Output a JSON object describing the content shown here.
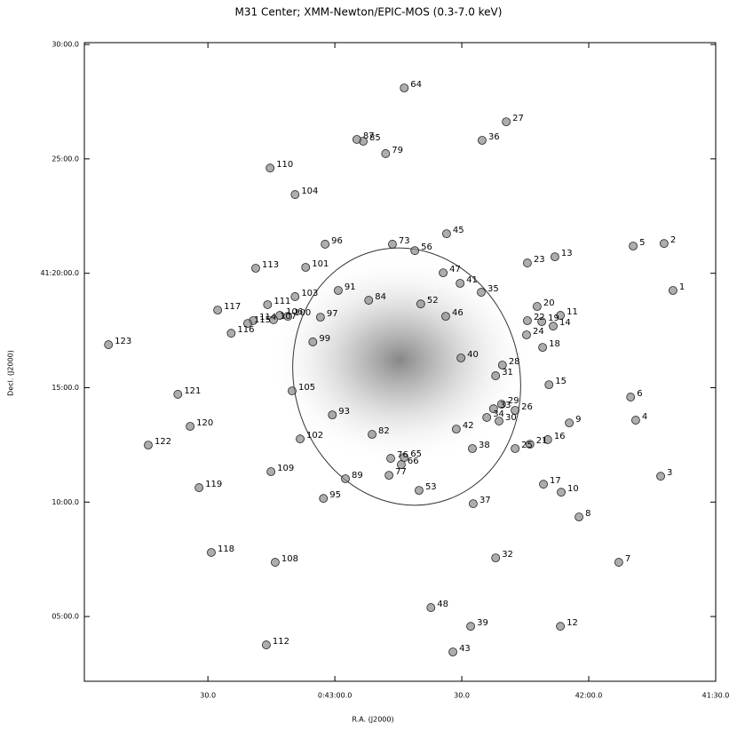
{
  "chart_data": {
    "type": "scatter",
    "title": "M31 Center; XMM-Newton/EPIC-MOS (0.3-7.0 keV)",
    "x_label": "R.A. (J2000)",
    "y_label": "Decl. (J2000)",
    "xlim": [
      2639.2,
      2490
    ],
    "ylim": [
      2.17,
      30.08
    ],
    "xticks": [
      {
        "value": 2610,
        "label": "30.0"
      },
      {
        "value": 2580,
        "label": "0:43:00.0"
      },
      {
        "value": 2550,
        "label": "30.0"
      },
      {
        "value": 2520,
        "label": "42:00.0"
      },
      {
        "value": 2490,
        "label": "41:30.0"
      }
    ],
    "yticks": [
      {
        "value": 5,
        "label": "05:00.0"
      },
      {
        "value": 10,
        "label": "10:00.0"
      },
      {
        "value": 15,
        "label": "15:00.0"
      },
      {
        "value": 20,
        "label": "41:20:00.0"
      },
      {
        "value": 25,
        "label": "25:00.0"
      },
      {
        "value": 30,
        "label": "30:00.0"
      }
    ],
    "series": [
      {
        "color": "#8a8a8a",
        "labels": [
          "1",
          "2",
          "3",
          "4",
          "5",
          "6",
          "7",
          "8",
          "9",
          "10",
          "11",
          "12",
          "13",
          "14",
          "15",
          "16",
          "17",
          "18",
          "19",
          "20",
          "21",
          "22",
          "23",
          "24",
          "25",
          "26",
          "27",
          "28",
          "29",
          "30",
          "31",
          "32",
          "33",
          "34",
          "35",
          "36",
          "37",
          "38",
          "39",
          "40",
          "41",
          "42",
          "43",
          "45",
          "46",
          "47",
          "48",
          "52",
          "53",
          "56",
          "64",
          "65",
          "66",
          "73",
          "76",
          "77",
          "79",
          "82",
          "84",
          "85",
          "87",
          "89",
          "91",
          "93",
          "95",
          "96",
          "97",
          "99",
          "100",
          "101",
          "102",
          "103",
          "104",
          "105",
          "106",
          "107",
          "108",
          "109",
          "110",
          "111",
          "112",
          "113",
          "114",
          "115",
          "116",
          "117",
          "118",
          "119",
          "120",
          "121",
          "122",
          "123"
        ],
        "x": [
          2500.1,
          2502.2,
          2503.0,
          2508.9,
          2509.5,
          2510.1,
          2512.9,
          2522.3,
          2524.6,
          2526.5,
          2526.7,
          2526.7,
          2528.0,
          2528.4,
          2529.4,
          2529.7,
          2530.7,
          2530.9,
          2531.1,
          2532.2,
          2533.9,
          2534.5,
          2534.5,
          2534.7,
          2537.4,
          2537.4,
          2539.5,
          2540.4,
          2540.6,
          2541.2,
          2542.0,
          2542.0,
          2542.5,
          2544.1,
          2545.4,
          2545.2,
          2547.3,
          2547.5,
          2547.9,
          2550.2,
          2550.4,
          2551.3,
          2552.1,
          2553.6,
          2553.8,
          2554.4,
          2557.3,
          2559.7,
          2560.1,
          2561.1,
          2563.6,
          2563.6,
          2564.3,
          2566.4,
          2566.8,
          2567.2,
          2568.0,
          2571.2,
          2572.0,
          2573.3,
          2574.8,
          2577.5,
          2579.2,
          2580.6,
          2582.7,
          2582.3,
          2583.4,
          2585.2,
          2591.1,
          2586.9,
          2588.2,
          2589.4,
          2589.4,
          2590.1,
          2593.0,
          2594.5,
          2594.1,
          2595.1,
          2595.3,
          2595.9,
          2596.2,
          2598.7,
          2599.3,
          2600.6,
          2604.5,
          2607.7,
          2609.2,
          2612.1,
          2614.2,
          2617.1,
          2624.1,
          2633.5
        ],
        "values": [
          19.25,
          21.3,
          11.13,
          13.58,
          21.19,
          14.59,
          7.37,
          9.35,
          13.46,
          10.43,
          18.16,
          4.57,
          20.72,
          17.69,
          15.13,
          12.73,
          10.78,
          16.76,
          17.89,
          18.55,
          12.53,
          17.93,
          20.45,
          17.31,
          12.34,
          14.01,
          26.62,
          15.99,
          14.28,
          13.54,
          15.52,
          7.56,
          14.08,
          13.7,
          19.17,
          25.81,
          9.93,
          12.34,
          4.57,
          16.3,
          19.56,
          13.19,
          3.45,
          21.73,
          18.12,
          20.02,
          5.39,
          18.66,
          10.51,
          20.99,
          28.1,
          11.95,
          11.64,
          21.27,
          11.91,
          11.17,
          25.23,
          12.96,
          18.82,
          25.77,
          25.85,
          11.02,
          19.25,
          13.81,
          10.16,
          21.27,
          18.08,
          17.0,
          18.12,
          20.26,
          12.76,
          18.98,
          23.44,
          14.86,
          18.16,
          17.97,
          7.37,
          11.33,
          24.6,
          18.63,
          3.76,
          20.22,
          17.93,
          17.81,
          17.38,
          18.39,
          7.8,
          10.63,
          13.31,
          14.71,
          12.49,
          16.88
        ]
      }
    ]
  }
}
